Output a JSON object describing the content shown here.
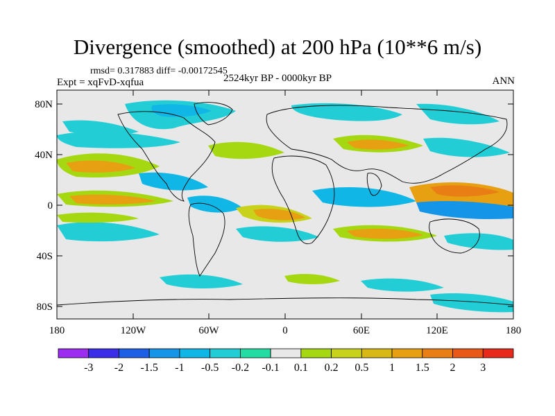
{
  "title": "Divergence (smoothed) at 200 hPa (10**6 m/s)",
  "stats": "rmsd= 0.317883 diff= -0.00172545",
  "experiment": "Expt = xqFvD-xqfua",
  "period": "2524kyr BP - 0000kyr BP",
  "season": "ANN",
  "lat_ticks": [
    "80N",
    "40N",
    "0",
    "40S",
    "80S"
  ],
  "lon_ticks": [
    "180",
    "120W",
    "60W",
    "0",
    "60E",
    "120E",
    "180"
  ],
  "colorbar": {
    "colors": [
      "#9b2cf0",
      "#3a2ee8",
      "#1e5fe6",
      "#1595e8",
      "#10b6e6",
      "#22cdd6",
      "#22dca4",
      "#e8e8e8",
      "#a6d812",
      "#c8d21a",
      "#d8b814",
      "#e6a012",
      "#e87e14",
      "#ea5818",
      "#e82a1c"
    ],
    "labels": [
      "-3",
      "-2",
      "-1.5",
      "-1",
      "-0.5",
      "-0.2",
      "-0.1",
      "0.1",
      "0.2",
      "0.5",
      "1",
      "1.5",
      "2",
      "3"
    ]
  },
  "map": {
    "band_colors": {
      "neg_strong": "#1595e8",
      "neg_mid": "#10b6e6",
      "neg_weak": "#22cdd6",
      "neutral": "#e8e8e8",
      "pos_weak": "#a6d812",
      "pos_mid": "#c8d21a",
      "pos_strong": "#e6a012",
      "pos_max": "#e87e14"
    }
  }
}
